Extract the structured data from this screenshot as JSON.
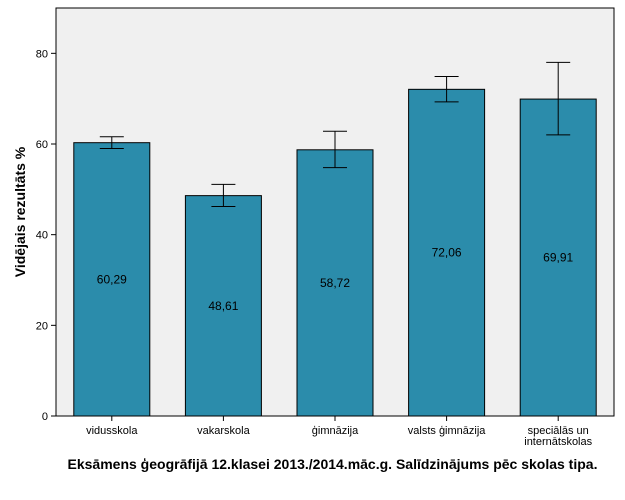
{
  "chart_data": {
    "type": "bar",
    "title": "",
    "xlabel": "Eksāmens ģeogrāfijā 12.klasei 2013./2014.māc.g. Salīdzinājums pēc skolas tipa.",
    "ylabel": "Vidējais rezultāts %",
    "ylim": [
      0,
      90
    ],
    "yticks": [
      0,
      20,
      40,
      60,
      80
    ],
    "yticks_labels": [
      "0",
      "20",
      "40",
      "60",
      "80"
    ],
    "grid": false,
    "categories": [
      "vidusskola",
      "vakarskola",
      "ģimnāzija",
      "valsts ģimnāzija",
      "speciālās un internātskolas"
    ],
    "category_lines": [
      [
        "vidusskola"
      ],
      [
        "vakarskola"
      ],
      [
        "ģimnāzija"
      ],
      [
        "valsts ģimnāzija"
      ],
      [
        "speciālās un",
        "internātskolas"
      ]
    ],
    "values": [
      60.29,
      48.61,
      58.72,
      72.06,
      69.91
    ],
    "value_labels": [
      "60,29",
      "48,61",
      "58,72",
      "72,06",
      "69,91"
    ],
    "error_low": [
      59.0,
      46.2,
      54.8,
      69.3,
      62.0
    ],
    "error_high": [
      61.6,
      51.1,
      62.8,
      74.9,
      78.0
    ],
    "colors": {
      "bar": "#2b8cab",
      "plot_bg": "#f0f0f0"
    }
  }
}
